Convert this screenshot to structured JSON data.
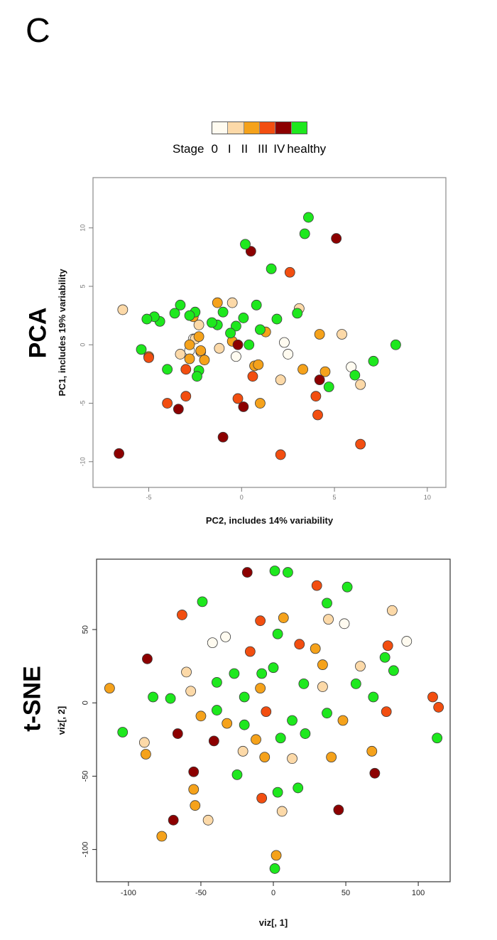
{
  "panel_letter": "C",
  "legend": {
    "title": "Stage",
    "labels": [
      "0",
      "I",
      "II",
      "III",
      "IV",
      "healthy"
    ],
    "colors": [
      "#fffbf0",
      "#fcd9a8",
      "#f5a21b",
      "#f24e10",
      "#8c0000",
      "#1ee81e"
    ]
  },
  "chart_data": [
    {
      "type": "scatter",
      "method_label": "PCA",
      "xlabel": "PC2, includes 14% variability",
      "ylabel": "PC1, includes 19% variability",
      "xlim": [
        -8,
        11
      ],
      "ylim": [
        -12.2,
        14.3
      ],
      "xticks": [
        -5,
        0,
        5,
        10
      ],
      "yticks": [
        -10,
        -5,
        0,
        5,
        10
      ],
      "ytick_labels_rotated": true,
      "grid": false,
      "series": [
        {
          "stage": "0",
          "color": "#fffbf0",
          "points": [
            [
              2.3,
              0.2
            ],
            [
              2.5,
              -0.8
            ],
            [
              -2.8,
              -0.5
            ],
            [
              -2.6,
              0.5
            ],
            [
              5.9,
              -1.9
            ],
            [
              -0.3,
              -1.0
            ]
          ]
        },
        {
          "stage": "I",
          "color": "#fcd9a8",
          "points": [
            [
              -6.4,
              3.0
            ],
            [
              -0.5,
              3.6
            ],
            [
              3.1,
              3.1
            ],
            [
              5.4,
              0.9
            ],
            [
              -3.3,
              -0.8
            ],
            [
              -2.3,
              1.7
            ],
            [
              -1.2,
              -0.3
            ],
            [
              2.1,
              -3.0
            ],
            [
              6.4,
              -3.4
            ],
            [
              -2.2,
              -0.6
            ],
            [
              -2.5,
              0.5
            ]
          ]
        },
        {
          "stage": "II",
          "color": "#f5a21b",
          "points": [
            [
              -1.3,
              3.6
            ],
            [
              -2.6,
              2.4
            ],
            [
              -2.3,
              0.7
            ],
            [
              -2.8,
              -1.2
            ],
            [
              -2.2,
              -0.5
            ],
            [
              -2.0,
              -1.3
            ],
            [
              -0.5,
              0.3
            ],
            [
              0.7,
              -1.8
            ],
            [
              0.9,
              -1.7
            ],
            [
              1.3,
              1.1
            ],
            [
              1.0,
              -5.0
            ],
            [
              3.3,
              -2.1
            ],
            [
              4.2,
              0.9
            ],
            [
              4.5,
              -2.3
            ],
            [
              -5.0,
              -1.0
            ],
            [
              -2.8,
              0.0
            ]
          ]
        },
        {
          "stage": "III",
          "color": "#f24e10",
          "points": [
            [
              2.6,
              6.2
            ],
            [
              -4.0,
              -5.0
            ],
            [
              -3.0,
              -4.4
            ],
            [
              -3.0,
              -2.1
            ],
            [
              -0.2,
              -4.6
            ],
            [
              0.6,
              -2.7
            ],
            [
              4.0,
              -4.4
            ],
            [
              4.1,
              -6.0
            ],
            [
              6.4,
              -8.5
            ],
            [
              2.1,
              -9.4
            ],
            [
              -5.0,
              -1.1
            ]
          ]
        },
        {
          "stage": "IV",
          "color": "#8c0000",
          "points": [
            [
              0.5,
              8.0
            ],
            [
              5.1,
              9.1
            ],
            [
              -0.2,
              0.0
            ],
            [
              0.1,
              -5.3
            ],
            [
              -3.4,
              -5.5
            ],
            [
              -1.0,
              -7.9
            ],
            [
              -6.6,
              -9.3
            ],
            [
              4.2,
              -3.0
            ]
          ]
        },
        {
          "stage": "healthy",
          "color": "#1ee81e",
          "points": [
            [
              3.6,
              10.9
            ],
            [
              3.4,
              9.5
            ],
            [
              0.2,
              8.6
            ],
            [
              1.6,
              6.5
            ],
            [
              -3.3,
              3.4
            ],
            [
              -3.6,
              2.7
            ],
            [
              -2.5,
              2.8
            ],
            [
              -2.8,
              2.5
            ],
            [
              -1.3,
              1.7
            ],
            [
              -1.6,
              1.9
            ],
            [
              -1.0,
              2.8
            ],
            [
              0.1,
              2.3
            ],
            [
              0.8,
              3.4
            ],
            [
              -0.3,
              1.6
            ],
            [
              -0.6,
              1.0
            ],
            [
              1.0,
              1.3
            ],
            [
              1.9,
              2.2
            ],
            [
              3.0,
              2.7
            ],
            [
              -4.4,
              2.0
            ],
            [
              -4.7,
              2.4
            ],
            [
              -5.1,
              2.2
            ],
            [
              -5.4,
              -0.4
            ],
            [
              -4.0,
              -2.1
            ],
            [
              -2.3,
              -2.2
            ],
            [
              -2.4,
              -2.7
            ],
            [
              0.4,
              0.0
            ],
            [
              4.7,
              -3.6
            ],
            [
              6.1,
              -2.6
            ],
            [
              7.1,
              -1.4
            ],
            [
              8.3,
              0.0
            ]
          ]
        }
      ]
    },
    {
      "type": "scatter",
      "method_label": "t-SNE",
      "xlabel": "viz[, 1]",
      "ylabel": "viz[, 2]",
      "xlim": [
        -122,
        122
      ],
      "ylim": [
        -122,
        98
      ],
      "xticks": [
        -100,
        -50,
        0,
        50,
        100
      ],
      "yticks": [
        -100,
        -50,
        0,
        50
      ],
      "ytick_labels_rotated": true,
      "grid": false,
      "series": [
        {
          "stage": "0",
          "color": "#fffbf0",
          "points": [
            [
              -42,
              41
            ],
            [
              -33,
              45
            ],
            [
              49,
              54
            ],
            [
              92,
              42
            ]
          ]
        },
        {
          "stage": "I",
          "color": "#fcd9a8",
          "points": [
            [
              -60,
              21
            ],
            [
              -57,
              8
            ],
            [
              38,
              57
            ],
            [
              60,
              25
            ],
            [
              82,
              63
            ],
            [
              34,
              11
            ],
            [
              -89,
              -27
            ],
            [
              -21,
              -33
            ],
            [
              13,
              -38
            ],
            [
              -45,
              -80
            ],
            [
              6,
              -74
            ]
          ]
        },
        {
          "stage": "II",
          "color": "#f5a21b",
          "points": [
            [
              -113,
              10
            ],
            [
              -50,
              -9
            ],
            [
              -32,
              -14
            ],
            [
              -12,
              -25
            ],
            [
              -9,
              10
            ],
            [
              7,
              58
            ],
            [
              29,
              37
            ],
            [
              34,
              26
            ],
            [
              48,
              -12
            ],
            [
              -6,
              -37
            ],
            [
              40,
              -37
            ],
            [
              68,
              -33
            ],
            [
              -88,
              -35
            ],
            [
              -55,
              -59
            ],
            [
              -54,
              -70
            ],
            [
              -77,
              -91
            ],
            [
              2,
              -104
            ]
          ]
        },
        {
          "stage": "III",
          "color": "#f24e10",
          "points": [
            [
              -63,
              60
            ],
            [
              -9,
              56
            ],
            [
              30,
              80
            ],
            [
              18,
              40
            ],
            [
              -16,
              35
            ],
            [
              79,
              39
            ],
            [
              -5,
              -6
            ],
            [
              78,
              -6
            ],
            [
              110,
              4
            ],
            [
              114,
              -3
            ],
            [
              -8,
              -65
            ]
          ]
        },
        {
          "stage": "IV",
          "color": "#8c0000",
          "points": [
            [
              -18,
              89
            ],
            [
              -87,
              30
            ],
            [
              -66,
              -21
            ],
            [
              -41,
              -26
            ],
            [
              -55,
              -47
            ],
            [
              -69,
              -80
            ],
            [
              45,
              -73
            ],
            [
              70,
              -48
            ]
          ]
        },
        {
          "stage": "healthy",
          "color": "#1ee81e",
          "points": [
            [
              1,
              90
            ],
            [
              10,
              89
            ],
            [
              51,
              79
            ],
            [
              -49,
              69
            ],
            [
              37,
              68
            ],
            [
              3,
              47
            ],
            [
              -27,
              20
            ],
            [
              -8,
              20
            ],
            [
              0,
              24
            ],
            [
              -39,
              14
            ],
            [
              -20,
              4
            ],
            [
              21,
              13
            ],
            [
              57,
              13
            ],
            [
              -83,
              4
            ],
            [
              -71,
              3
            ],
            [
              -39,
              -5
            ],
            [
              -20,
              -15
            ],
            [
              -104,
              -20
            ],
            [
              13,
              -12
            ],
            [
              37,
              -7
            ],
            [
              22,
              -21
            ],
            [
              5,
              -24
            ],
            [
              -25,
              -49
            ],
            [
              3,
              -61
            ],
            [
              17,
              -58
            ],
            [
              69,
              4
            ],
            [
              77,
              31
            ],
            [
              83,
              22
            ],
            [
              113,
              -24
            ],
            [
              1,
              -113
            ]
          ]
        }
      ]
    }
  ]
}
